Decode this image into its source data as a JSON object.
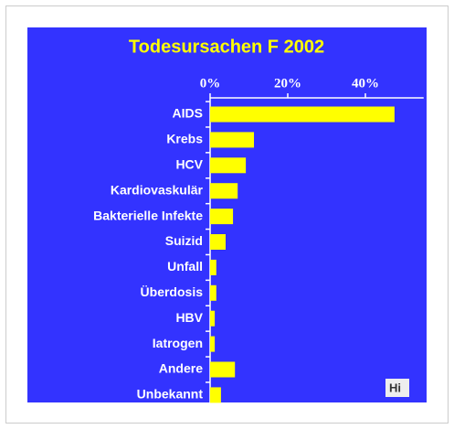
{
  "chart_data": {
    "type": "barh",
    "title": "Todesursachen F 2002",
    "categories": [
      "AIDS",
      "Krebs",
      "HCV",
      "Kardiovaskulär",
      "Bakterielle Infekte",
      "Suizid",
      "Unfall",
      "Überdosis",
      "HBV",
      "Iatrogen",
      "Andere",
      "Unbekannt"
    ],
    "values": [
      47.5,
      11.3,
      9.2,
      7.1,
      5.9,
      4.0,
      1.6,
      1.6,
      1.2,
      1.2,
      6.4,
      2.8
    ],
    "color": "#ffff00",
    "xlim": [
      0,
      55
    ],
    "xticks": [
      {
        "value": 0,
        "label": "0%"
      },
      {
        "value": 20,
        "label": "20%"
      },
      {
        "value": 40,
        "label": "40%"
      }
    ],
    "logo": "Hi"
  }
}
